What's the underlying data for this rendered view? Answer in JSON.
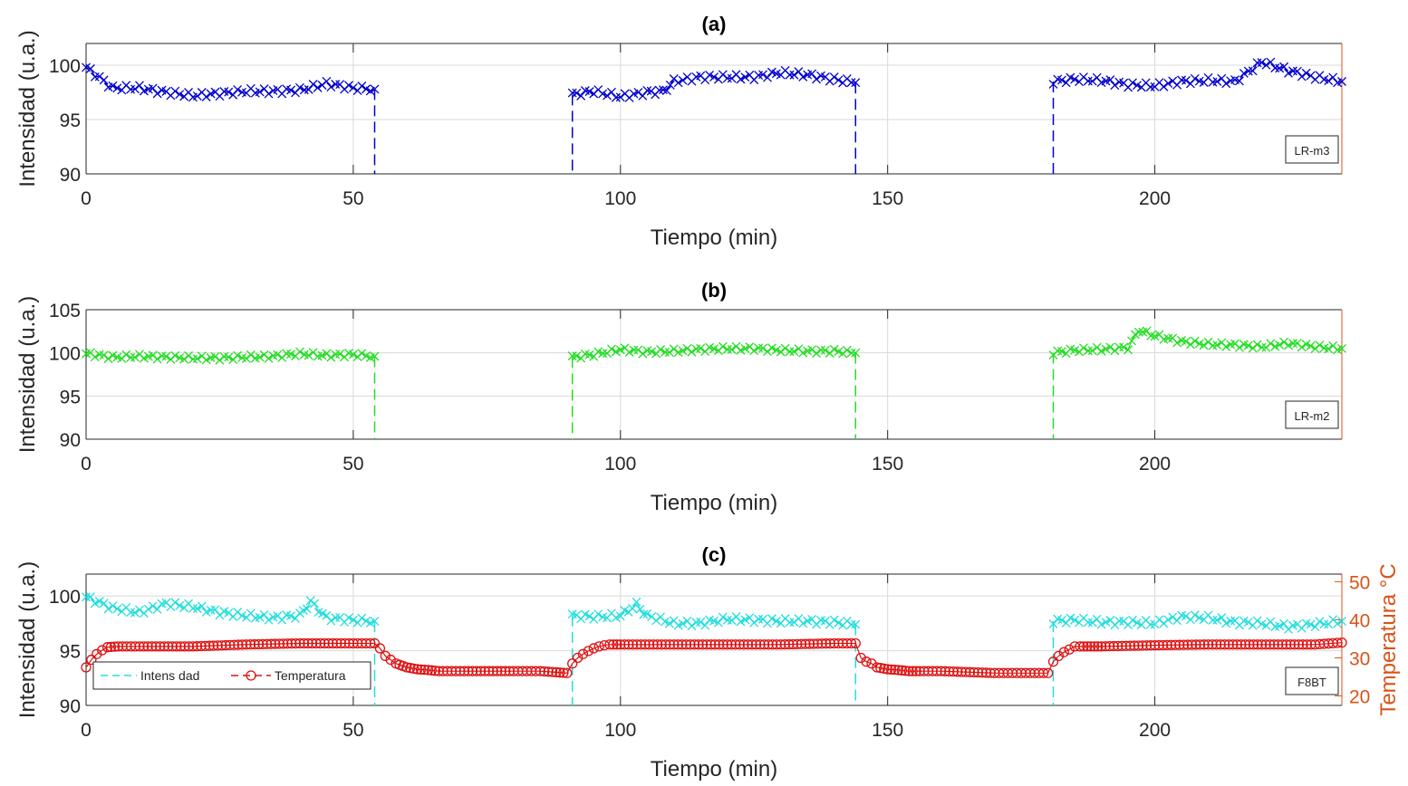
{
  "chart_data": [
    {
      "type": "line",
      "title": "(a)",
      "xlabel": "Tiempo (min)",
      "ylabel": "Intensidad (u.a.)",
      "xlim": [
        0,
        235
      ],
      "ylim": [
        90,
        102
      ],
      "xticks": [
        0,
        50,
        100,
        150,
        200
      ],
      "yticks": [
        90,
        95,
        100
      ],
      "grid": true,
      "box_label": "LR-m3",
      "series": [
        {
          "color": "#0000cc",
          "marker": "x",
          "segments": [
            {
              "x": [
                0,
                5,
                10,
                15,
                20,
                25,
                30,
                35,
                40,
                45,
                50,
                54
              ],
              "y": [
                99.8,
                97.9,
                97.9,
                97.5,
                97.2,
                97.4,
                97.6,
                97.6,
                97.7,
                98.3,
                97.9,
                97.8
              ]
            },
            {
              "x": [
                91,
                95,
                100,
                105,
                108,
                110,
                115,
                120,
                125,
                130,
                135,
                140,
                144
              ],
              "y": [
                97.3,
                97.6,
                97.1,
                97.5,
                97.6,
                98.5,
                98.9,
                98.9,
                98.9,
                99.3,
                99.1,
                98.7,
                98.4
              ]
            },
            {
              "x": [
                181,
                185,
                190,
                195,
                200,
                205,
                210,
                215,
                220,
                225,
                230,
                235
              ],
              "y": [
                98.5,
                98.7,
                98.6,
                98.2,
                98.1,
                98.5,
                98.6,
                98.5,
                100.3,
                99.5,
                98.9,
                98.5
              ]
            }
          ]
        }
      ]
    },
    {
      "type": "line",
      "title": "(b)",
      "xlabel": "Tiempo (min)",
      "ylabel": "Intensidad (u.a.)",
      "xlim": [
        0,
        235
      ],
      "ylim": [
        90,
        105
      ],
      "xticks": [
        0,
        50,
        100,
        150,
        200
      ],
      "yticks": [
        90,
        95,
        100,
        105
      ],
      "grid": true,
      "box_label": "LR-m2",
      "series": [
        {
          "color": "#22dd22",
          "marker": "x",
          "segments": [
            {
              "x": [
                0,
                5,
                10,
                15,
                20,
                25,
                30,
                35,
                40,
                45,
                50,
                54
              ],
              "y": [
                99.9,
                99.5,
                99.6,
                99.5,
                99.4,
                99.4,
                99.5,
                99.6,
                99.9,
                99.7,
                99.8,
                99.6
              ]
            },
            {
              "x": [
                91,
                95,
                100,
                105,
                110,
                115,
                120,
                125,
                130,
                135,
                140,
                144
              ],
              "y": [
                99.5,
                99.8,
                100.4,
                100.1,
                100.2,
                100.4,
                100.5,
                100.5,
                100.3,
                100.2,
                100.2,
                100.0
              ]
            },
            {
              "x": [
                181,
                185,
                190,
                195,
                197,
                200,
                205,
                210,
                215,
                220,
                225,
                230,
                235
              ],
              "y": [
                100.0,
                100.3,
                100.4,
                100.6,
                102.6,
                102.0,
                101.3,
                101.0,
                100.9,
                100.7,
                101.1,
                100.7,
                100.5
              ]
            }
          ]
        }
      ]
    },
    {
      "type": "line",
      "title": "(c)",
      "xlabel": "Tiempo (min)",
      "ylabel": "Intensidad (u.a.)",
      "y2label": "Temperatura °C",
      "xlim": [
        0,
        235
      ],
      "ylim": [
        90,
        102
      ],
      "y2lim": [
        17.5,
        52
      ],
      "xticks": [
        0,
        50,
        100,
        150,
        200
      ],
      "yticks": [
        90,
        95,
        100
      ],
      "y2ticks": [
        20,
        30,
        40,
        50
      ],
      "grid": true,
      "box_label": "F8BT",
      "legend": [
        "Intens dad",
        "Temperatura"
      ],
      "legend_position": "bottom-left",
      "series": [
        {
          "name": "Intens dad",
          "axis": "left",
          "color": "#22dddd",
          "marker": "x",
          "segments": [
            {
              "x": [
                0,
                5,
                10,
                15,
                20,
                25,
                30,
                35,
                40,
                42,
                45,
                50,
                54
              ],
              "y": [
                99.9,
                98.9,
                98.5,
                99.3,
                99.0,
                98.5,
                98.2,
                98.0,
                98.2,
                99.5,
                98.0,
                97.8,
                97.7
              ]
            },
            {
              "x": [
                91,
                95,
                100,
                103,
                105,
                110,
                115,
                120,
                125,
                130,
                135,
                140,
                144
              ],
              "y": [
                98.2,
                98.1,
                98.2,
                99.2,
                98.2,
                97.5,
                97.5,
                97.9,
                97.8,
                97.7,
                97.7,
                97.6,
                97.4
              ]
            },
            {
              "x": [
                181,
                185,
                190,
                195,
                200,
                205,
                210,
                215,
                220,
                225,
                230,
                235
              ],
              "y": [
                97.7,
                97.8,
                97.6,
                97.6,
                97.5,
                98.1,
                98.0,
                97.6,
                97.5,
                97.2,
                97.4,
                97.7
              ]
            }
          ]
        },
        {
          "name": "Temperatura",
          "axis": "right",
          "color": "#dd1111",
          "marker": "o",
          "segments": [
            {
              "x": [
                0,
                1,
                2,
                3,
                4,
                6,
                10,
                20,
                30,
                40,
                50,
                54,
                55,
                56,
                57,
                58,
                60,
                62,
                64,
                66,
                70,
                80,
                85,
                88,
                90,
                91,
                92,
                93,
                94,
                95,
                96,
                97,
                98,
                100,
                110,
                120,
                130,
                140,
                144,
                145,
                146,
                147,
                148,
                150,
                152,
                154,
                156,
                160,
                170,
                175,
                180,
                181,
                182,
                183,
                184,
                185,
                186,
                188,
                190,
                200,
                210,
                220,
                230,
                235
              ],
              "y": [
                27.5,
                29.5,
                31.0,
                32.0,
                32.8,
                33.0,
                33.0,
                33.0,
                33.5,
                33.8,
                33.8,
                33.8,
                32.5,
                30.5,
                29.5,
                28.5,
                27.5,
                27.0,
                26.8,
                26.5,
                26.5,
                26.5,
                26.5,
                26.2,
                26.0,
                28.5,
                30.0,
                31.0,
                31.8,
                32.5,
                33.0,
                33.3,
                33.5,
                33.5,
                33.5,
                33.5,
                33.5,
                33.8,
                33.8,
                30.0,
                29.0,
                28.5,
                27.5,
                27.0,
                26.8,
                26.5,
                26.5,
                26.5,
                26.0,
                26.0,
                26.0,
                29.0,
                30.5,
                31.5,
                32.2,
                33.0,
                33.0,
                33.0,
                33.0,
                33.3,
                33.5,
                33.5,
                33.5,
                34.0
              ]
            }
          ]
        }
      ]
    }
  ]
}
